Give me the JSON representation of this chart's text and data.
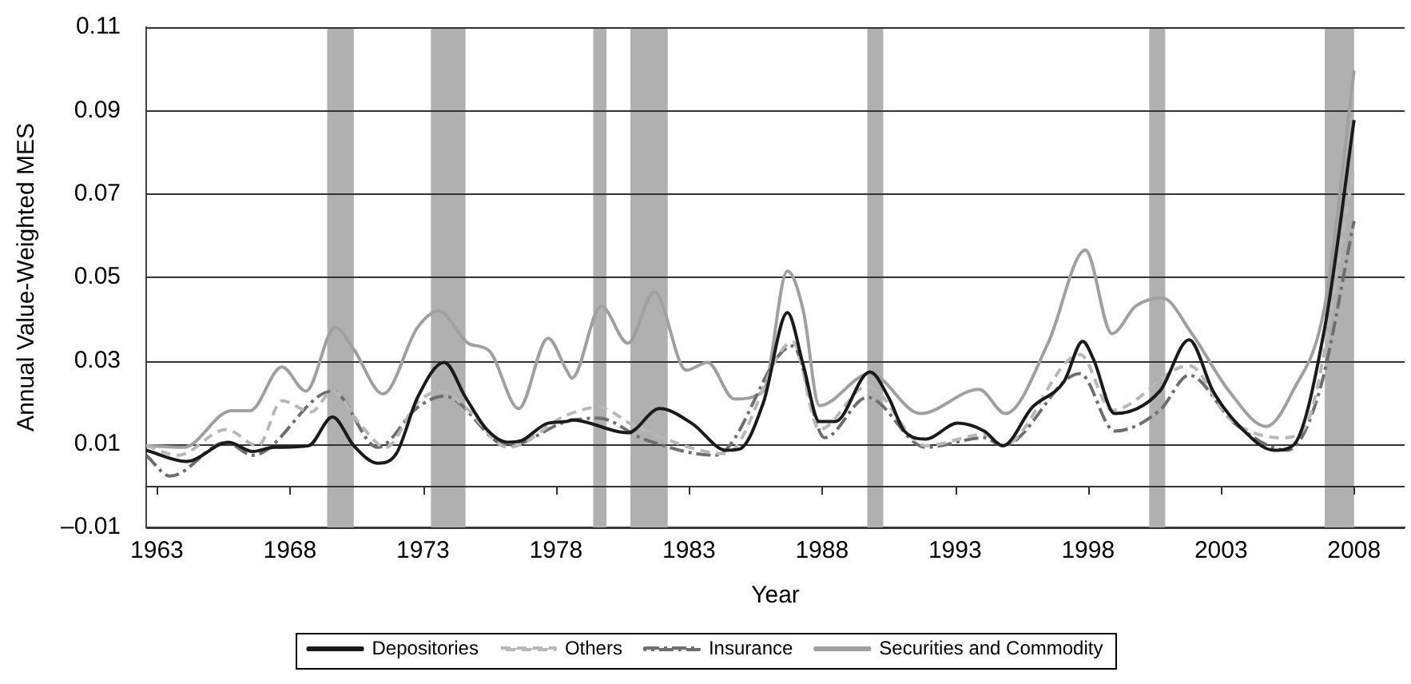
{
  "chart_data": {
    "type": "line",
    "xlabel": "Year",
    "ylabel": "Annual Value-Weighted MES",
    "xlim": [
      1962.6,
      2009.9
    ],
    "xticks": [
      1963,
      1968,
      1973,
      1978,
      1983,
      1988,
      1993,
      1998,
      2003,
      2008
    ],
    "ylim": [
      -0.01,
      0.11
    ],
    "yticks": [
      {
        "value": -0.01,
        "label": "–0.01"
      },
      0.01,
      0.03,
      0.05,
      0.07,
      0.09,
      0.11
    ],
    "grid": "y",
    "legend": "bottom",
    "marker": "none",
    "bands": [
      {
        "axis": "x",
        "from": 1969.4,
        "to": 1970.4,
        "color": "#b0b0b0"
      },
      {
        "axis": "x",
        "from": 1973.3,
        "to": 1974.6,
        "color": "#b0b0b0"
      },
      {
        "axis": "x",
        "from": 1979.4,
        "to": 1979.9,
        "color": "#b0b0b0"
      },
      {
        "axis": "x",
        "from": 1980.8,
        "to": 1982.2,
        "color": "#b0b0b0"
      },
      {
        "axis": "x",
        "from": 1989.7,
        "to": 1990.3,
        "color": "#b0b0b0"
      },
      {
        "axis": "x",
        "from": 2000.3,
        "to": 2000.9,
        "color": "#b0b0b0"
      },
      {
        "axis": "x",
        "from": 2006.9,
        "to": 2008.0,
        "color": "#b0b0b0"
      }
    ],
    "series": [
      {
        "name": "Depositories",
        "color": "#1a1a1a",
        "line_style": "solid",
        "x": [
          1962.6,
          1964.1,
          1965.7,
          1966.6,
          1967.4,
          1968.7,
          1969.6,
          1970.4,
          1971.3,
          1972.0,
          1972.8,
          1973.8,
          1974.6,
          1975.4,
          1976.2,
          1976.7,
          1977.7,
          1978.4,
          1978.6,
          1980.7,
          1981.9,
          1983.1,
          1984.4,
          1984.9,
          1985.8,
          1986.7,
          1987.3,
          1987.9,
          1988.5,
          1989.8,
          1990.5,
          1991.1,
          1991.9,
          1993.1,
          1994.1,
          1994.8,
          1995.9,
          1997.1,
          1997.8,
          1998.2,
          1999.0,
          2000.7,
          2001.8,
          2002.7,
          2003.7,
          2005.0,
          2005.7,
          2006.9,
          2008.0
        ],
        "values": [
          0.0085,
          0.0058,
          0.0104,
          0.0082,
          0.0092,
          0.0096,
          0.0165,
          0.0096,
          0.0054,
          0.0077,
          0.0212,
          0.0296,
          0.0212,
          0.0135,
          0.0104,
          0.0108,
          0.015,
          0.0154,
          0.0158,
          0.0127,
          0.0185,
          0.015,
          0.0085,
          0.0088,
          0.02,
          0.0415,
          0.0288,
          0.0154,
          0.0154,
          0.0273,
          0.0212,
          0.0131,
          0.0112,
          0.015,
          0.0131,
          0.0096,
          0.0188,
          0.025,
          0.0346,
          0.0304,
          0.0173,
          0.0227,
          0.035,
          0.0227,
          0.0142,
          0.0085,
          0.0096,
          0.038,
          0.0877
        ]
      },
      {
        "name": "Others",
        "color": "#b8b8b8",
        "line_style": "dashed",
        "x": [
          1962.6,
          1963.8,
          1965.6,
          1966.8,
          1967.7,
          1968.8,
          1969.6,
          1970.6,
          1971.6,
          1972.8,
          1973.7,
          1974.6,
          1976.2,
          1978.4,
          1979.6,
          1981.0,
          1984.4,
          1986.9,
          1987.9,
          1989.7,
          1991.9,
          1994.1,
          1994.8,
          1997.7,
          1998.9,
          2001.8,
          2003.3,
          2005.3,
          2006.1,
          2008.0
        ],
        "values": [
          0.0096,
          0.0073,
          0.0135,
          0.0096,
          0.0204,
          0.0177,
          0.0227,
          0.015,
          0.0092,
          0.02,
          0.0227,
          0.0188,
          0.0092,
          0.0169,
          0.0188,
          0.0142,
          0.0077,
          0.0345,
          0.0135,
          0.0238,
          0.0096,
          0.0123,
          0.0096,
          0.0315,
          0.0181,
          0.0288,
          0.0162,
          0.0115,
          0.0135,
          0.0758
        ]
      },
      {
        "name": "Insurance",
        "color": "#6e6e6e",
        "line_style": "dashdot",
        "x": [
          1962.6,
          1963.5,
          1965.6,
          1966.6,
          1969.6,
          1971.3,
          1972.8,
          1973.8,
          1976.2,
          1978.4,
          1979.6,
          1981.3,
          1984.0,
          1986.9,
          1988.1,
          1989.7,
          1991.9,
          1994.1,
          1994.8,
          1997.7,
          1999.0,
          2000.7,
          2001.8,
          2003.5,
          2005.5,
          2006.7,
          2008.0
        ],
        "values": [
          0.0073,
          0.0023,
          0.0104,
          0.0073,
          0.0227,
          0.0092,
          0.0188,
          0.0215,
          0.0096,
          0.0154,
          0.0162,
          0.0112,
          0.0073,
          0.0335,
          0.0115,
          0.0212,
          0.0092,
          0.0115,
          0.0096,
          0.0269,
          0.0131,
          0.0181,
          0.0265,
          0.015,
          0.0085,
          0.0227,
          0.0635
        ]
      },
      {
        "name": "Securities and Commodity",
        "color": "#a0a0a0",
        "line_style": "solid",
        "x": [
          1962.6,
          1964.0,
          1965.8,
          1966.5,
          1967.7,
          1968.6,
          1969.7,
          1970.4,
          1971.5,
          1972.8,
          1973.6,
          1974.7,
          1975.5,
          1976.6,
          1977.7,
          1978.4,
          1978.6,
          1979.7,
          1980.7,
          1981.7,
          1982.9,
          1983.7,
          1984.7,
          1985.8,
          1986.7,
          1987.3,
          1987.9,
          1989.8,
          1991.7,
          1993.9,
          1994.9,
          1996.5,
          1997.9,
          1998.9,
          1999.8,
          2000.8,
          2001.9,
          2003.3,
          2004.7,
          2005.7,
          2006.9,
          2008.0
        ],
        "values": [
          0.0096,
          0.0092,
          0.018,
          0.018,
          0.0285,
          0.0227,
          0.038,
          0.0327,
          0.022,
          0.038,
          0.0419,
          0.0342,
          0.0323,
          0.0185,
          0.0354,
          0.0277,
          0.0258,
          0.0431,
          0.0342,
          0.0465,
          0.0277,
          0.0296,
          0.0208,
          0.0227,
          0.0515,
          0.0419,
          0.0192,
          0.0269,
          0.0173,
          0.0231,
          0.0173,
          0.0342,
          0.0565,
          0.0365,
          0.0431,
          0.045,
          0.0365,
          0.0227,
          0.0142,
          0.0227,
          0.0431,
          0.0996
        ]
      }
    ]
  }
}
